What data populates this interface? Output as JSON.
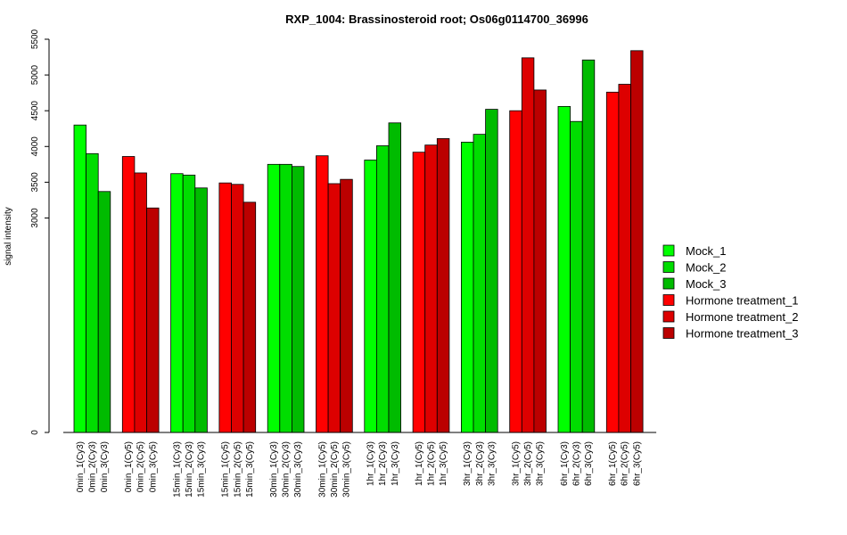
{
  "chart_data": {
    "type": "bar",
    "title": "RXP_1004: Brassinosteroid root; Os06g0114700_36996",
    "xlabel": "",
    "ylabel": "signal intensity",
    "yticks": [
      0,
      3000,
      3500,
      4000,
      4500,
      5000,
      5500
    ],
    "ylim": [
      0,
      5500
    ],
    "grid": false,
    "legend_position": "right",
    "categories": [
      "0min_1(Cy3)",
      "0min_2(Cy3)",
      "0min_3(Cy3)",
      "0min_1(Cy5)",
      "0min_2(Cy5)",
      "0min_3(Cy5)",
      "15min_1(Cy3)",
      "15min_2(Cy3)",
      "15min_3(Cy3)",
      "15min_1(Cy5)",
      "15min_2(Cy5)",
      "15min_3(Cy5)",
      "30min_1(Cy3)",
      "30min_2(Cy3)",
      "30min_3(Cy3)",
      "30min_1(Cy5)",
      "30min_2(Cy5)",
      "30min_3(Cy5)",
      "1hr_1(Cy3)",
      "1hr_2(Cy3)",
      "1hr_3(Cy3)",
      "1hr_1(Cy5)",
      "1hr_2(Cy5)",
      "1hr_3(Cy5)",
      "3hr_1(Cy3)",
      "3hr_2(Cy3)",
      "3hr_3(Cy3)",
      "3hr_1(Cy5)",
      "3hr_2(Cy5)",
      "3hr_3(Cy5)",
      "6hr_1(Cy3)",
      "6hr_2(Cy3)",
      "6hr_3(Cy3)",
      "6hr_1(Cy5)",
      "6hr_2(Cy5)",
      "6hr_3(Cy5)"
    ],
    "values": [
      4300,
      3900,
      3370,
      3860,
      3630,
      3140,
      3620,
      3600,
      3420,
      3490,
      3470,
      3220,
      3750,
      3750,
      3720,
      3870,
      3480,
      3540,
      3810,
      4010,
      4330,
      3920,
      4020,
      4110,
      4060,
      4170,
      4520,
      4500,
      5240,
      4790,
      4560,
      4350,
      5210,
      4760,
      4870,
      5340
    ],
    "series_colors": {
      "Mock_1": "#00ff00",
      "Mock_2": "#00dd00",
      "Mock_3": "#00bb00",
      "Hormone treatment_1": "#ff0000",
      "Hormone treatment_2": "#dd0000",
      "Hormone treatment_3": "#bb0000"
    },
    "legend": [
      {
        "label": "Mock_1",
        "color": "#00ff00"
      },
      {
        "label": "Mock_2",
        "color": "#00dd00"
      },
      {
        "label": "Mock_3",
        "color": "#00bb00"
      },
      {
        "label": "Hormone treatment_1",
        "color": "#ff0000"
      },
      {
        "label": "Hormone treatment_2",
        "color": "#dd0000"
      },
      {
        "label": "Hormone treatment_3",
        "color": "#bb0000"
      }
    ]
  }
}
